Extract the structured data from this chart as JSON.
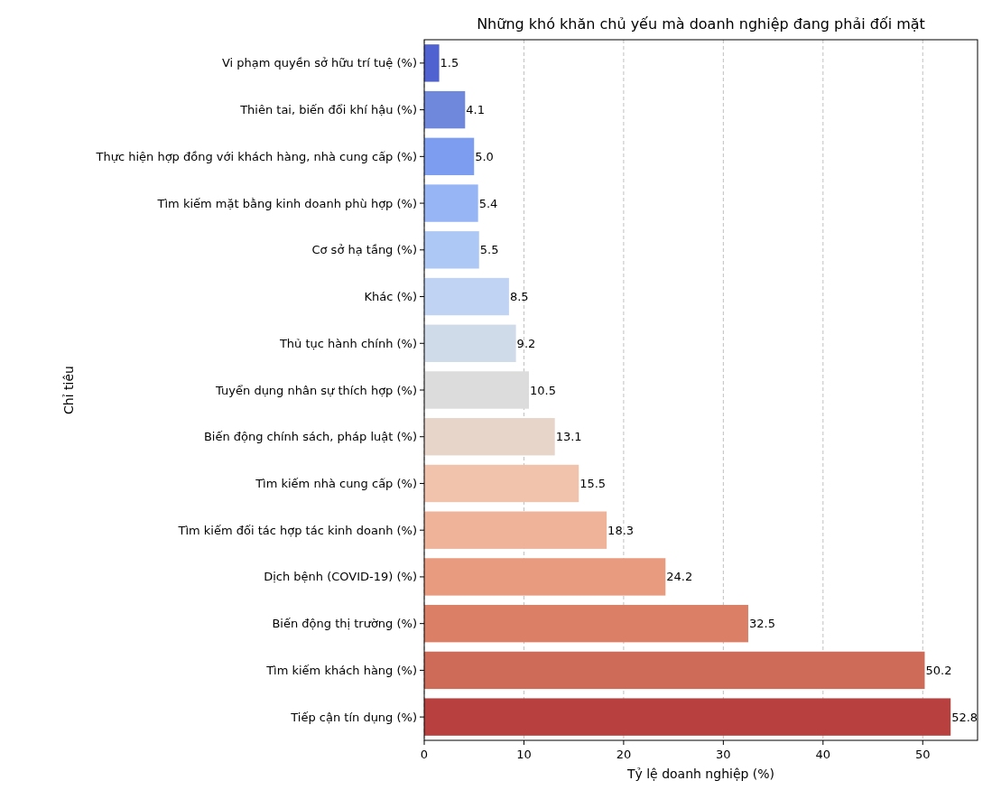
{
  "chart_data": {
    "type": "bar",
    "orientation": "horizontal",
    "title": "Những khó khăn chủ yếu mà doanh nghiệp đang phải đối mặt",
    "xlabel": "Tỷ lệ doanh nghiệp (%)",
    "ylabel": "Chỉ tiêu",
    "categories": [
      "Vi phạm quyền sở hữu trí tuệ (%)",
      "Thiên tai, biến đổi khí hậu (%)",
      "Thực hiện hợp đồng với khách hàng, nhà cung cấp (%)",
      "Tìm kiếm mặt bằng kinh doanh phù hợp (%)",
      "Cơ sở hạ tầng (%)",
      "Khác (%)",
      "Thủ tục hành chính (%)",
      "Tuyển dụng nhân sự thích hợp (%)",
      "Biến động chính sách, pháp luật (%)",
      "Tìm kiếm nhà cung cấp (%)",
      "Tìm kiếm đối tác hợp tác kinh doanh (%)",
      "Dịch bệnh (COVID-19) (%)",
      "Biến động thị trường (%)",
      "Tìm kiếm khách hàng (%)",
      "Tiếp cận tín dụng (%)"
    ],
    "values": [
      1.5,
      4.1,
      5.0,
      5.4,
      5.5,
      8.5,
      9.2,
      10.5,
      13.1,
      15.5,
      18.3,
      24.2,
      32.5,
      50.2,
      52.8
    ],
    "value_labels": [
      "1.5",
      "4.1",
      "5.0",
      "5.4",
      "5.5",
      "8.5",
      "9.2",
      "10.5",
      "13.1",
      "15.5",
      "18.3",
      "24.2",
      "32.5",
      "50.2",
      "52.8"
    ],
    "colors": [
      "#4f62cf",
      "#6f88dc",
      "#7d9ef0",
      "#97b5f5",
      "#aec8f5",
      "#c1d3f3",
      "#d0dbea",
      "#dddcdc",
      "#e8d5ca",
      "#f1c3ad",
      "#efb39a",
      "#e99b7f",
      "#db7f66",
      "#cd6b58",
      "#b8403f"
    ],
    "xlim": [
      0,
      55.5
    ],
    "xticks": [
      0,
      10,
      20,
      30,
      40,
      50
    ],
    "grid": "x"
  }
}
